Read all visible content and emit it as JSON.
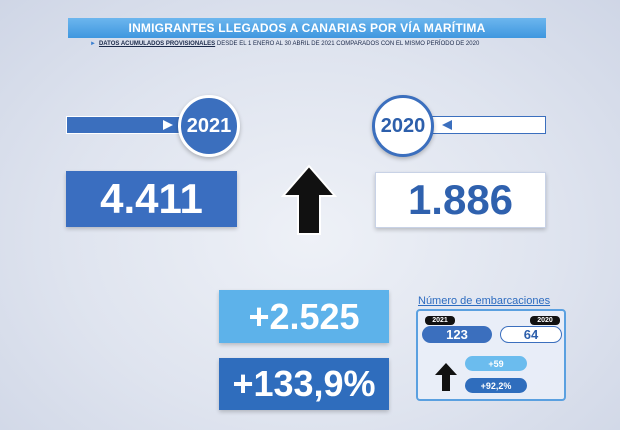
{
  "header": {
    "title": "INMIGRANTES LLEGADOS A CANARIAS POR VÍA MARÍTIMA",
    "subtitle_lead": "DATOS ACUMULADOS PROVISIONALES",
    "subtitle_rest": "DESDE EL 1 ENERO AL 30 ABRIL DE 2021 COMPARADOS CON EL MISMO PERÍODO DE 2020"
  },
  "comparison": {
    "year_current": "2021",
    "year_previous": "2020",
    "value_current": "4.411",
    "value_previous": "1.886",
    "difference": "+2.525",
    "percent_change": "+133,9%"
  },
  "boats": {
    "title": "Número de embarcaciones",
    "year_current": "2021",
    "year_previous": "2020",
    "value_current": "123",
    "value_previous": "64",
    "difference": "+59",
    "percent_change": "+92,2%"
  }
}
